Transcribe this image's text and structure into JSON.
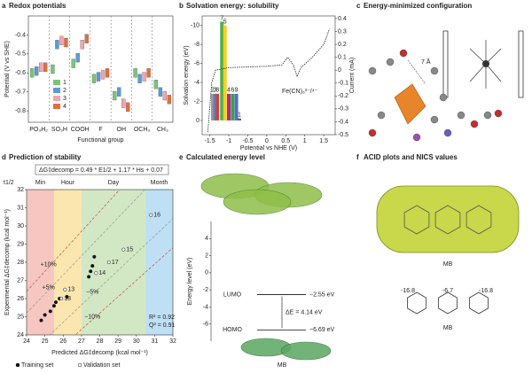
{
  "chart_data": [
    {
      "type": "box",
      "letter": "a",
      "title": "Redox potentials",
      "x_label": "Functional group",
      "y_label": "Potential (V vs SHE)",
      "categories": [
        "PO₃H₂",
        "SO₃H",
        "COOH",
        "F",
        "OH",
        "OCH₃",
        "CH₃"
      ],
      "ylim": [
        -0.86,
        -0.3
      ],
      "yticks": [
        -0.4,
        -0.5,
        -0.6,
        -0.7,
        -0.8
      ],
      "series": [
        {
          "name": "1",
          "color": "#7cc576",
          "values": [
            -0.6,
            -0.58,
            -0.55,
            -0.63,
            -0.72,
            -0.6,
            -0.66
          ]
        },
        {
          "name": "2",
          "color": "#5b9bd5",
          "values": [
            -0.59,
            -0.45,
            -0.52,
            -0.62,
            -0.7,
            -0.63,
            -0.7
          ]
        },
        {
          "name": "3",
          "color": "#f4a3b0",
          "values": [
            -0.57,
            -0.43,
            -0.45,
            -0.61,
            -0.76,
            -0.62,
            -0.72
          ]
        },
        {
          "name": "4",
          "color": "#e0703c",
          "values": [
            -0.57,
            -0.44,
            -0.42,
            -0.6,
            -0.78,
            -0.6,
            -0.74
          ]
        }
      ]
    },
    {
      "type": "bar",
      "letter": "b",
      "title": "Solvation energy: solubility",
      "x_label": "Potential vs NHE (V)",
      "y_label": "Solvation energy (eV)",
      "y2_label": "Current (mA)",
      "xlim": [
        -1.7,
        1.8
      ],
      "xticks": [
        -1.5,
        -1,
        -0.5,
        0,
        0.5,
        1,
        1.5
      ],
      "ylim": [
        1.5,
        -11
      ],
      "yticks": [
        0,
        -2,
        -4,
        -6,
        -8,
        -10
      ],
      "y2lim": [
        -0.5,
        0.42
      ],
      "y2ticks": [
        -0.5,
        -0.4,
        -0.3,
        -0.2,
        -0.1,
        0,
        0.1,
        0.2,
        0.3,
        0.4
      ],
      "bars": {
        "labels": [
          "2",
          "3",
          "8",
          "7",
          "5",
          "4",
          "6",
          "9",
          "1"
        ],
        "x": [
          -1.42,
          -1.36,
          -1.3,
          -1.18,
          -1.1,
          -1.0,
          -0.9,
          -0.8,
          -0.72
        ],
        "values": [
          -2.8,
          -2.8,
          -2.8,
          -10.4,
          -10.0,
          -2.8,
          -2.8,
          -2.8,
          -0.2
        ],
        "colors": [
          "#999999",
          "#5b7fc4",
          "#d04040",
          "#4caf50",
          "#f2d020",
          "#c0208a",
          "#3aa04a",
          "#5070c0",
          "#5050a0"
        ]
      },
      "curve": {
        "name": "Fe(CN)₆³⁻/⁴⁻",
        "axis": "y2",
        "x": [
          -1.55,
          -1.45,
          -1.35,
          -1.0,
          0,
          0.4,
          0.55,
          0.7,
          0.8,
          0.9,
          1.2,
          1.5,
          1.65
        ],
        "values": [
          -0.48,
          -0.1,
          0.0,
          0.02,
          0.03,
          0.04,
          0.1,
          0.04,
          -0.05,
          0.02,
          0.1,
          0.2,
          0.32
        ]
      }
    },
    {
      "type": "scatter",
      "letter": "d",
      "title": "Prediction of stability",
      "formula": "ΔG‡decomp = 0.49 * E1/2 + 1.17 * Hs + 0.07",
      "t_label": "t1/2",
      "x_label": "Predicted ΔG‡decomp (kcal mol⁻¹)",
      "y_label": "Experimental ΔG‡decomp (kcal mol⁻¹)",
      "xlim": [
        24,
        32
      ],
      "xticks": [
        24,
        25,
        26,
        27,
        28,
        29,
        30,
        31,
        32
      ],
      "ylim": [
        24,
        32
      ],
      "yticks": [
        24,
        25,
        26,
        27,
        28,
        29,
        30,
        31,
        32
      ],
      "regions": [
        {
          "label": "Min",
          "from": 24,
          "to": 25.5,
          "color": "#f6c6c0"
        },
        {
          "label": "Hour",
          "from": 25.5,
          "to": 27,
          "color": "#fbe6b0"
        },
        {
          "label": "Day",
          "from": 27,
          "to": 30.5,
          "color": "#d2e8c4"
        },
        {
          "label": "Month",
          "from": 30.5,
          "to": 32,
          "color": "#bfe0f4"
        }
      ],
      "bounds": [
        {
          "label": "+10%",
          "factor": 1.1
        },
        {
          "label": "+5%",
          "factor": 1.05
        },
        {
          "label": "−5%",
          "factor": 0.95
        },
        {
          "label": "−10%",
          "factor": 0.9
        }
      ],
      "annotations": [
        "R² = 0.92",
        "Q² = 0.91"
      ],
      "series": [
        {
          "name": "Training set",
          "x": [
            24.8,
            25.0,
            25.3,
            25.5,
            25.6,
            25.8,
            26.2,
            27.4,
            27.5,
            27.6,
            27.7
          ],
          "values": [
            24.8,
            25.1,
            25.3,
            25.6,
            25.8,
            26.0,
            26.1,
            27.2,
            27.5,
            27.8,
            28.3
          ]
        },
        {
          "name": "Validation set",
          "x": [
            26.1,
            27.8,
            29.3,
            30.8,
            28.5,
            25.9
          ],
          "values": [
            26.5,
            27.4,
            28.7,
            30.6,
            28.0,
            26.0
          ],
          "labels": [
            "13",
            "14",
            "15",
            "16",
            "17",
            "18"
          ]
        }
      ]
    },
    {
      "type": "level",
      "letter": "e",
      "title": "Calculated energy level",
      "y_label": "Energy level (eV)",
      "ylim": [
        -8,
        6
      ],
      "yticks": [
        4,
        2,
        0,
        -2,
        -4,
        -6
      ],
      "levels": [
        {
          "name": "LUMO",
          "value": -2.55,
          "label": "−2.55 eV"
        },
        {
          "name": "HOMO",
          "value": -6.69,
          "label": "−6.69 eV"
        }
      ],
      "gap_label": "ΔE = 4.14 eV",
      "molecule": "MB"
    }
  ],
  "panel_c": {
    "letter": "c",
    "title": "Energy-minimized configuration",
    "annotation": "7 Å"
  },
  "panel_f": {
    "letter": "f",
    "title": "ACID plots and NICS values",
    "molecule": "MB",
    "label": "MB",
    "nics": [
      -16.8,
      -6.7,
      -16.8
    ]
  }
}
